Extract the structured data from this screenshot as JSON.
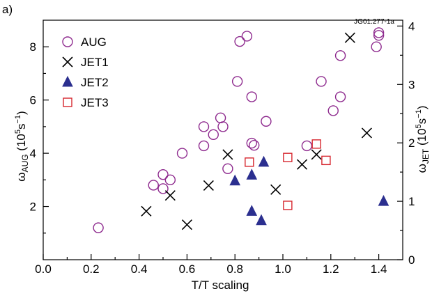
{
  "panel_label": "a)",
  "figure_id": "JG01.277-1a",
  "colors": {
    "AUG": "#8e2a8e",
    "JET1": "#000000",
    "JET2": "#2b2f8f",
    "JET3": "#d6262e"
  },
  "chart_data": {
    "type": "scatter",
    "xlabel": "T/T scaling",
    "ylabel_left": "ω_AUG (10^5 s^-1)",
    "ylabel_left_parts": {
      "omega": "ω",
      "sub": "AUG",
      "paren_open": " (10",
      "exp1": "5",
      "s": "s",
      "exp2": "−1",
      "paren_close": ")"
    },
    "ylabel_right_parts": {
      "omega": "ω",
      "sub": "JET",
      "paren_open": " (10",
      "exp1": "5",
      "s": "s",
      "exp2": "−1",
      "paren_close": ")"
    },
    "xlim": [
      0.0,
      1.5
    ],
    "ylim_left": [
      0,
      9
    ],
    "ylim_right": [
      0,
      4.1
    ],
    "x_ticks": [
      "0.0",
      "0.2",
      "0.4",
      "0.6",
      "0.8",
      "1.0",
      "1.2",
      "1.4"
    ],
    "y_left_ticks": [
      "2",
      "4",
      "6",
      "8"
    ],
    "y_right_ticks": [
      "0",
      "1",
      "2",
      "3",
      "4"
    ],
    "legend_position": "top-left",
    "grid": false,
    "series": [
      {
        "name": "AUG",
        "marker": "open-circle",
        "axis": "left",
        "points": [
          [
            0.23,
            1.2
          ],
          [
            0.46,
            2.8
          ],
          [
            0.5,
            3.2
          ],
          [
            0.5,
            2.67
          ],
          [
            0.53,
            3.0
          ],
          [
            0.58,
            4.0
          ],
          [
            0.67,
            5.0
          ],
          [
            0.67,
            4.28
          ],
          [
            0.71,
            4.7
          ],
          [
            0.74,
            5.33
          ],
          [
            0.75,
            5.0
          ],
          [
            0.77,
            3.42
          ],
          [
            0.81,
            6.7
          ],
          [
            0.82,
            8.2
          ],
          [
            0.85,
            8.4
          ],
          [
            0.87,
            6.12
          ],
          [
            0.87,
            4.38
          ],
          [
            0.88,
            4.3
          ],
          [
            0.93,
            5.2
          ],
          [
            1.1,
            4.28
          ],
          [
            1.16,
            6.7
          ],
          [
            1.21,
            5.6
          ],
          [
            1.24,
            7.67
          ],
          [
            1.24,
            6.12
          ],
          [
            1.39,
            8.0
          ],
          [
            1.4,
            8.43
          ],
          [
            1.4,
            8.53
          ]
        ]
      },
      {
        "name": "JET1",
        "marker": "x",
        "axis": "right",
        "points": [
          [
            0.43,
            0.83
          ],
          [
            0.53,
            1.1
          ],
          [
            0.6,
            0.6
          ],
          [
            0.69,
            1.27
          ],
          [
            0.77,
            1.8
          ],
          [
            0.97,
            1.2
          ],
          [
            1.08,
            1.63
          ],
          [
            1.14,
            1.8
          ],
          [
            1.28,
            3.8
          ],
          [
            1.35,
            2.17
          ]
        ]
      },
      {
        "name": "JET2",
        "marker": "filled-triangle",
        "axis": "right",
        "points": [
          [
            0.8,
            1.35
          ],
          [
            0.87,
            1.45
          ],
          [
            0.92,
            1.67
          ],
          [
            0.87,
            0.83
          ],
          [
            0.91,
            0.67
          ],
          [
            1.42,
            1.0
          ]
        ]
      },
      {
        "name": "JET3",
        "marker": "open-square",
        "axis": "right",
        "points": [
          [
            0.86,
            1.67
          ],
          [
            1.02,
            1.75
          ],
          [
            1.02,
            0.93
          ],
          [
            1.14,
            1.98
          ],
          [
            1.18,
            1.7
          ]
        ]
      }
    ]
  }
}
